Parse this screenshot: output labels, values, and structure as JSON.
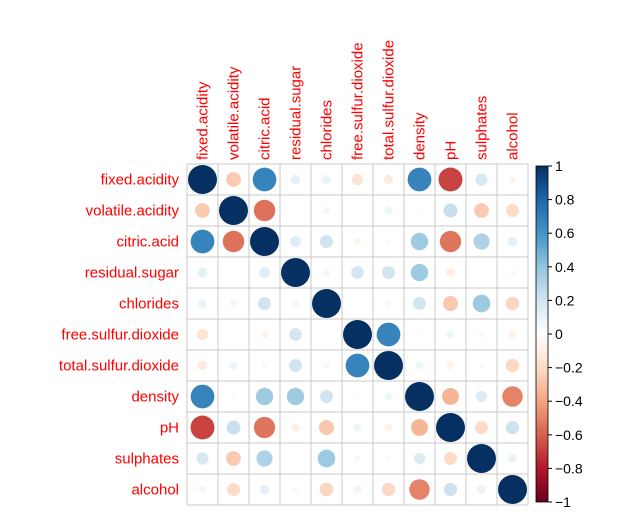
{
  "chart_data": {
    "type": "heatmap",
    "title": "",
    "variables": [
      "fixed.acidity",
      "volatile.acidity",
      "citric.acid",
      "residual.sugar",
      "chlorides",
      "free.sulfur.dioxide",
      "total.sulfur.dioxide",
      "density",
      "pH",
      "sulphates",
      "alcohol"
    ],
    "matrix": [
      [
        1.0,
        -0.26,
        0.67,
        0.11,
        0.09,
        -0.15,
        -0.11,
        0.67,
        -0.68,
        0.18,
        -0.06
      ],
      [
        -0.26,
        1.0,
        -0.55,
        0.0,
        0.06,
        -0.01,
        0.08,
        0.02,
        0.23,
        -0.26,
        -0.2
      ],
      [
        0.67,
        -0.55,
        1.0,
        0.14,
        0.2,
        -0.06,
        0.04,
        0.36,
        -0.54,
        0.31,
        0.11
      ],
      [
        0.11,
        0.0,
        0.14,
        1.0,
        0.06,
        0.19,
        0.2,
        0.36,
        -0.09,
        0.01,
        0.04
      ],
      [
        0.09,
        0.06,
        0.2,
        0.06,
        1.0,
        0.01,
        0.05,
        0.2,
        -0.27,
        0.37,
        -0.22
      ],
      [
        -0.15,
        -0.01,
        -0.06,
        0.19,
        0.01,
        1.0,
        0.67,
        -0.02,
        0.07,
        0.05,
        -0.07
      ],
      [
        -0.11,
        0.08,
        0.04,
        0.2,
        0.05,
        0.67,
        1.0,
        0.07,
        -0.07,
        0.04,
        -0.21
      ],
      [
        0.67,
        0.02,
        0.36,
        0.36,
        0.2,
        -0.02,
        0.07,
        1.0,
        -0.34,
        0.15,
        -0.5
      ],
      [
        -0.68,
        0.23,
        -0.54,
        -0.09,
        -0.27,
        0.07,
        -0.07,
        -0.34,
        1.0,
        -0.2,
        0.21
      ],
      [
        0.18,
        -0.26,
        0.31,
        0.01,
        0.37,
        0.05,
        0.04,
        0.15,
        -0.2,
        1.0,
        0.09
      ],
      [
        -0.06,
        -0.2,
        0.11,
        0.04,
        -0.22,
        -0.07,
        -0.21,
        -0.5,
        0.21,
        0.09,
        1.0
      ]
    ],
    "method": "circle",
    "legend": {
      "position": "right",
      "range": [
        -1,
        1
      ],
      "ticks": [
        "1",
        "0.8",
        "0.6",
        "0.4",
        "0.2",
        "0",
        "−0.2",
        "−0.4",
        "−0.6",
        "−0.8",
        "−1"
      ],
      "tick_values": [
        1,
        0.8,
        0.6,
        0.4,
        0.2,
        0,
        -0.2,
        -0.4,
        -0.6,
        -0.8,
        -1
      ]
    },
    "colors": {
      "label": "#ff0000",
      "grid": "#c8c8c8",
      "palette": [
        "#67001f",
        "#b2182b",
        "#d6604d",
        "#f4a582",
        "#fddbc7",
        "#ffffff",
        "#d1e5f0",
        "#92c5de",
        "#4393c3",
        "#2166ac",
        "#053061"
      ]
    }
  }
}
